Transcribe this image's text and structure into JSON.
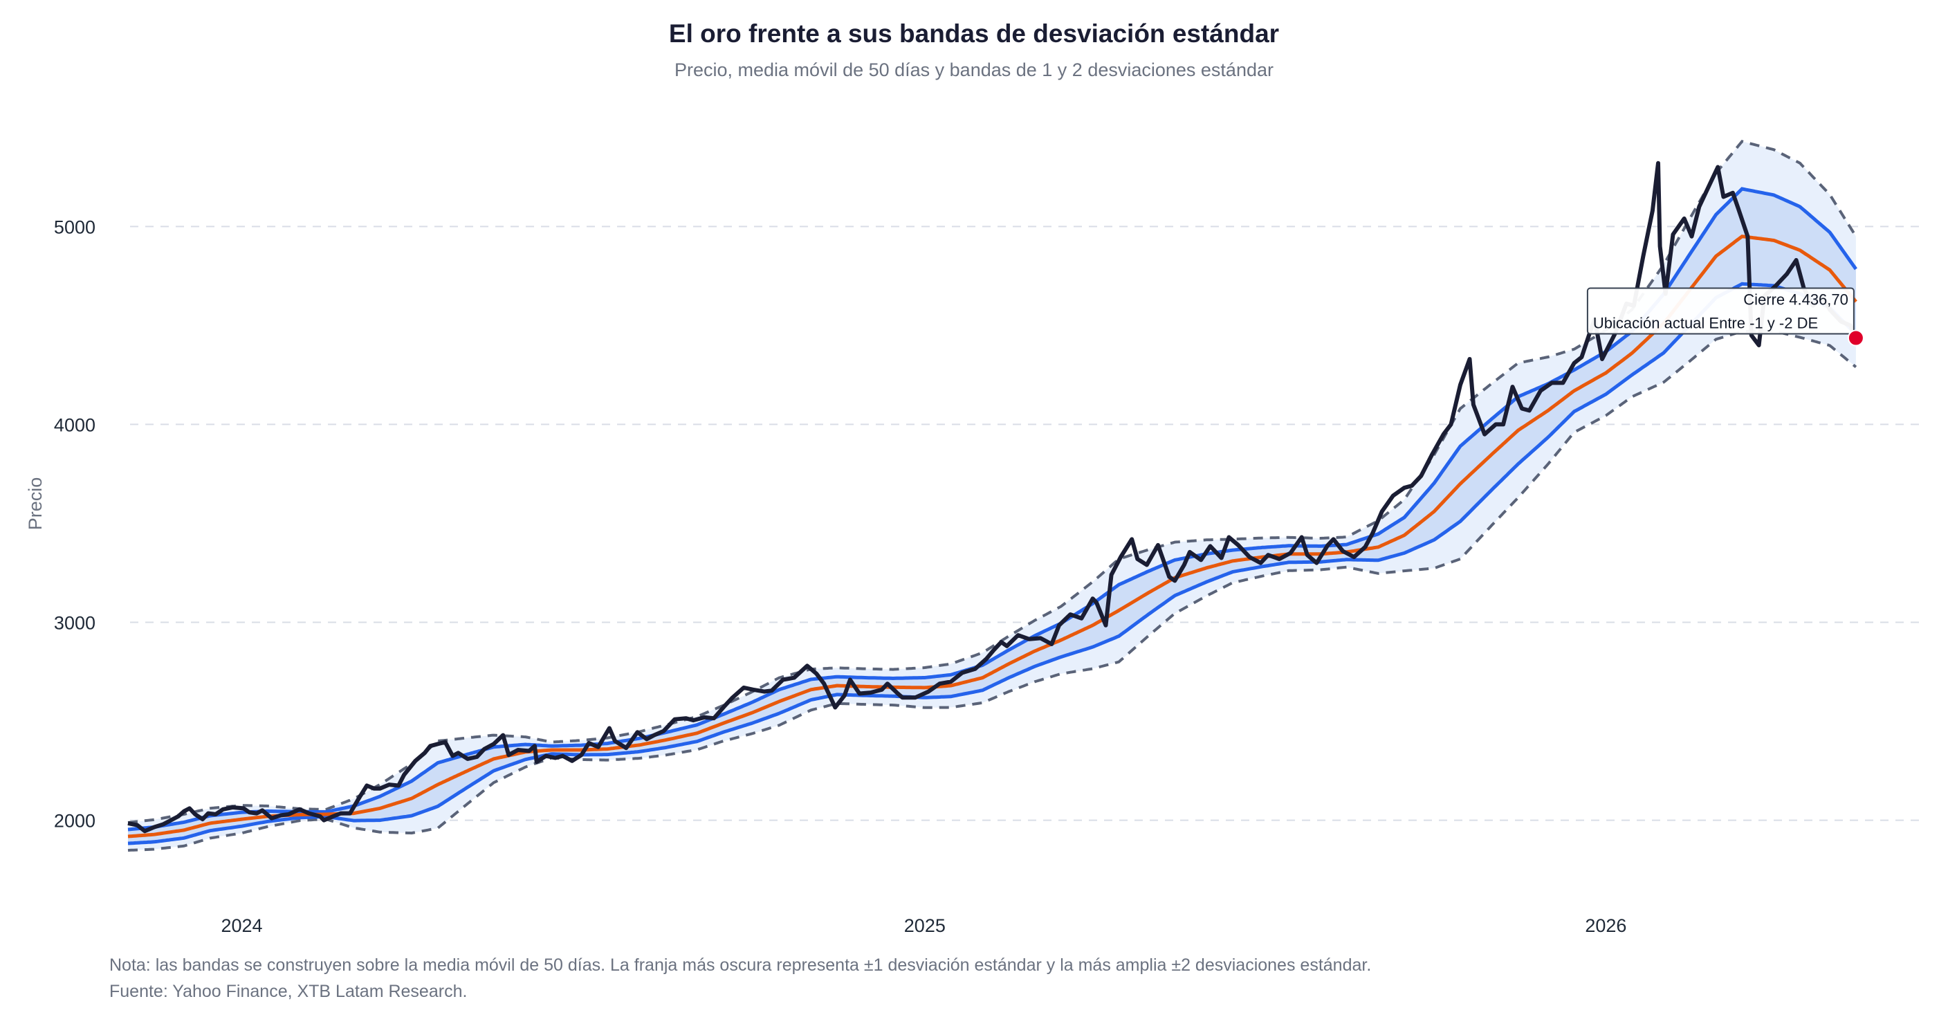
{
  "chart_data": {
    "type": "line",
    "title": "El oro frente a sus bandas de desviación estándar",
    "subtitle": "Precio, media móvil de 50 días y bandas de 1 y 2 desviaciones estándar",
    "ylabel": "Precio",
    "xlabel": "",
    "xlim": [
      "2023-10-22",
      "2026-06-20"
    ],
    "ylim": [
      1600,
      5620
    ],
    "x_ticks": [
      {
        "date": "2024-01-01",
        "label": "2024"
      },
      {
        "date": "2025-01-01",
        "label": "2025"
      },
      {
        "date": "2026-01-01",
        "label": "2026"
      }
    ],
    "y_ticks": [
      2000,
      3000,
      4000,
      5000
    ],
    "grid": "horizontal-dashed",
    "colors": {
      "price": "#1a1d33",
      "sma": "#e8590c",
      "band1": "#2563eb",
      "band2": "#5a6378",
      "fill1": "#cdddf7",
      "fill2": "#e8f0fc",
      "marker": "#e0002a"
    },
    "series": {
      "price": [
        [
          "2023-11-01",
          1985
        ],
        [
          "2023-11-06",
          1975
        ],
        [
          "2023-11-10",
          1945
        ],
        [
          "2023-11-15",
          1965
        ],
        [
          "2023-11-20",
          1980
        ],
        [
          "2023-11-24",
          2000
        ],
        [
          "2023-11-28",
          2020
        ],
        [
          "2023-12-01",
          2045
        ],
        [
          "2023-12-04",
          2060
        ],
        [
          "2023-12-07",
          2030
        ],
        [
          "2023-12-11",
          2005
        ],
        [
          "2023-12-14",
          2035
        ],
        [
          "2023-12-18",
          2030
        ],
        [
          "2023-12-22",
          2055
        ],
        [
          "2023-12-27",
          2065
        ],
        [
          "2024-01-02",
          2060
        ],
        [
          "2024-01-05",
          2040
        ],
        [
          "2024-01-09",
          2035
        ],
        [
          "2024-01-12",
          2050
        ],
        [
          "2024-01-17",
          2010
        ],
        [
          "2024-01-22",
          2025
        ],
        [
          "2024-01-26",
          2030
        ],
        [
          "2024-02-01",
          2055
        ],
        [
          "2024-02-06",
          2035
        ],
        [
          "2024-02-12",
          2020
        ],
        [
          "2024-02-14",
          2000
        ],
        [
          "2024-02-19",
          2020
        ],
        [
          "2024-02-23",
          2035
        ],
        [
          "2024-02-28",
          2035
        ],
        [
          "2024-03-04",
          2115
        ],
        [
          "2024-03-08",
          2175
        ],
        [
          "2024-03-12",
          2160
        ],
        [
          "2024-03-15",
          2160
        ],
        [
          "2024-03-20",
          2180
        ],
        [
          "2024-03-25",
          2175
        ],
        [
          "2024-03-28",
          2230
        ],
        [
          "2024-04-03",
          2300
        ],
        [
          "2024-04-08",
          2340
        ],
        [
          "2024-04-11",
          2375
        ],
        [
          "2024-04-15",
          2385
        ],
        [
          "2024-04-19",
          2395
        ],
        [
          "2024-04-23",
          2325
        ],
        [
          "2024-04-26",
          2340
        ],
        [
          "2024-05-01",
          2310
        ],
        [
          "2024-05-06",
          2320
        ],
        [
          "2024-05-10",
          2360
        ],
        [
          "2024-05-15",
          2385
        ],
        [
          "2024-05-20",
          2430
        ],
        [
          "2024-05-23",
          2330
        ],
        [
          "2024-05-28",
          2355
        ],
        [
          "2024-06-03",
          2350
        ],
        [
          "2024-06-06",
          2375
        ],
        [
          "2024-06-07",
          2295
        ],
        [
          "2024-06-12",
          2325
        ],
        [
          "2024-06-17",
          2315
        ],
        [
          "2024-06-21",
          2325
        ],
        [
          "2024-06-26",
          2300
        ],
        [
          "2024-07-01",
          2330
        ],
        [
          "2024-07-05",
          2390
        ],
        [
          "2024-07-10",
          2370
        ],
        [
          "2024-07-16",
          2465
        ],
        [
          "2024-07-19",
          2400
        ],
        [
          "2024-07-25",
          2365
        ],
        [
          "2024-07-31",
          2445
        ],
        [
          "2024-08-05",
          2410
        ],
        [
          "2024-08-09",
          2430
        ],
        [
          "2024-08-14",
          2450
        ],
        [
          "2024-08-20",
          2510
        ],
        [
          "2024-08-26",
          2515
        ],
        [
          "2024-08-30",
          2505
        ],
        [
          "2024-09-05",
          2520
        ],
        [
          "2024-09-10",
          2515
        ],
        [
          "2024-09-16",
          2580
        ],
        [
          "2024-09-20",
          2620
        ],
        [
          "2024-09-26",
          2670
        ],
        [
          "2024-10-01",
          2660
        ],
        [
          "2024-10-07",
          2650
        ],
        [
          "2024-10-11",
          2655
        ],
        [
          "2024-10-17",
          2710
        ],
        [
          "2024-10-23",
          2720
        ],
        [
          "2024-10-30",
          2780
        ],
        [
          "2024-11-04",
          2740
        ],
        [
          "2024-11-08",
          2690
        ],
        [
          "2024-11-14",
          2570
        ],
        [
          "2024-11-19",
          2630
        ],
        [
          "2024-11-22",
          2710
        ],
        [
          "2024-11-27",
          2640
        ],
        [
          "2024-12-03",
          2645
        ],
        [
          "2024-12-09",
          2660
        ],
        [
          "2024-12-12",
          2690
        ],
        [
          "2024-12-17",
          2645
        ],
        [
          "2024-12-20",
          2620
        ],
        [
          "2024-12-27",
          2620
        ],
        [
          "2025-01-03",
          2650
        ],
        [
          "2025-01-09",
          2690
        ],
        [
          "2025-01-15",
          2700
        ],
        [
          "2025-01-21",
          2745
        ],
        [
          "2025-01-28",
          2765
        ],
        [
          "2025-02-03",
          2815
        ],
        [
          "2025-02-07",
          2860
        ],
        [
          "2025-02-11",
          2900
        ],
        [
          "2025-02-14",
          2880
        ],
        [
          "2025-02-20",
          2935
        ],
        [
          "2025-02-26",
          2915
        ],
        [
          "2025-03-04",
          2920
        ],
        [
          "2025-03-10",
          2890
        ],
        [
          "2025-03-14",
          2985
        ],
        [
          "2025-03-20",
          3040
        ],
        [
          "2025-03-26",
          3020
        ],
        [
          "2025-04-01",
          3120
        ],
        [
          "2025-04-03",
          3100
        ],
        [
          "2025-04-08",
          2985
        ],
        [
          "2025-04-11",
          3240
        ],
        [
          "2025-04-16",
          3330
        ],
        [
          "2025-04-22",
          3420
        ],
        [
          "2025-04-25",
          3320
        ],
        [
          "2025-04-30",
          3290
        ],
        [
          "2025-05-06",
          3390
        ],
        [
          "2025-05-12",
          3230
        ],
        [
          "2025-05-15",
          3210
        ],
        [
          "2025-05-20",
          3290
        ],
        [
          "2025-05-23",
          3355
        ],
        [
          "2025-05-29",
          3315
        ],
        [
          "2025-06-03",
          3385
        ],
        [
          "2025-06-09",
          3325
        ],
        [
          "2025-06-13",
          3430
        ],
        [
          "2025-06-18",
          3390
        ],
        [
          "2025-06-24",
          3330
        ],
        [
          "2025-06-30",
          3300
        ],
        [
          "2025-07-04",
          3340
        ],
        [
          "2025-07-10",
          3320
        ],
        [
          "2025-07-16",
          3350
        ],
        [
          "2025-07-22",
          3430
        ],
        [
          "2025-07-25",
          3340
        ],
        [
          "2025-07-30",
          3300
        ],
        [
          "2025-08-05",
          3390
        ],
        [
          "2025-08-08",
          3420
        ],
        [
          "2025-08-13",
          3360
        ],
        [
          "2025-08-19",
          3330
        ],
        [
          "2025-08-25",
          3380
        ],
        [
          "2025-08-29",
          3450
        ],
        [
          "2025-09-03",
          3560
        ],
        [
          "2025-09-09",
          3640
        ],
        [
          "2025-09-15",
          3680
        ],
        [
          "2025-09-19",
          3690
        ],
        [
          "2025-09-24",
          3740
        ],
        [
          "2025-09-30",
          3850
        ],
        [
          "2025-10-06",
          3950
        ],
        [
          "2025-10-10",
          4000
        ],
        [
          "2025-10-15",
          4200
        ],
        [
          "2025-10-20",
          4330
        ],
        [
          "2025-10-22",
          4100
        ],
        [
          "2025-10-28",
          3950
        ],
        [
          "2025-11-03",
          4000
        ],
        [
          "2025-11-07",
          4000
        ],
        [
          "2025-11-12",
          4190
        ],
        [
          "2025-11-17",
          4080
        ],
        [
          "2025-11-21",
          4070
        ],
        [
          "2025-11-27",
          4170
        ],
        [
          "2025-12-03",
          4210
        ],
        [
          "2025-12-09",
          4210
        ],
        [
          "2025-12-15",
          4310
        ],
        [
          "2025-12-19",
          4340
        ],
        [
          "2025-12-24",
          4480
        ],
        [
          "2025-12-26",
          4530
        ],
        [
          "2025-12-30",
          4330
        ],
        [
          "2026-01-06",
          4460
        ],
        [
          "2026-01-12",
          4610
        ],
        [
          "2026-01-16",
          4600
        ],
        [
          "2026-01-21",
          4850
        ],
        [
          "2026-01-26",
          5080
        ],
        [
          "2026-01-29",
          5320
        ],
        [
          "2026-01-30",
          4900
        ],
        [
          "2026-02-02",
          4660
        ],
        [
          "2026-02-06",
          4960
        ],
        [
          "2026-02-12",
          5040
        ],
        [
          "2026-02-16",
          4950
        ],
        [
          "2026-02-20",
          5100
        ],
        [
          "2026-02-25",
          5200
        ],
        [
          "2026-03-02",
          5300
        ],
        [
          "2026-03-05",
          5150
        ],
        [
          "2026-03-10",
          5170
        ],
        [
          "2026-03-13",
          5090
        ],
        [
          "2026-03-18",
          4950
        ],
        [
          "2026-03-20",
          4450
        ],
        [
          "2026-03-24",
          4400
        ],
        [
          "2026-03-27",
          4650
        ],
        [
          "2026-04-02",
          4700
        ],
        [
          "2026-04-08",
          4760
        ],
        [
          "2026-04-13",
          4830
        ],
        [
          "2026-04-17",
          4690
        ],
        [
          "2026-04-22",
          4600
        ],
        [
          "2026-04-27",
          4650
        ],
        [
          "2026-05-01",
          4580
        ],
        [
          "2026-05-07",
          4520
        ],
        [
          "2026-05-12",
          4500
        ],
        [
          "2026-05-15",
          4436.7
        ]
      ],
      "sma": [
        [
          "2023-11-01",
          1918
        ],
        [
          "2023-11-15",
          1928
        ],
        [
          "2023-12-01",
          1950
        ],
        [
          "2023-12-15",
          1985
        ],
        [
          "2024-01-01",
          2005
        ],
        [
          "2024-01-15",
          2020
        ],
        [
          "2024-02-01",
          2028
        ],
        [
          "2024-02-15",
          2030
        ],
        [
          "2024-03-01",
          2035
        ],
        [
          "2024-03-15",
          2060
        ],
        [
          "2024-04-01",
          2110
        ],
        [
          "2024-04-15",
          2180
        ],
        [
          "2024-05-01",
          2250
        ],
        [
          "2024-05-15",
          2310
        ],
        [
          "2024-06-01",
          2345
        ],
        [
          "2024-06-15",
          2355
        ],
        [
          "2024-07-01",
          2355
        ],
        [
          "2024-07-15",
          2360
        ],
        [
          "2024-08-01",
          2380
        ],
        [
          "2024-08-15",
          2405
        ],
        [
          "2024-09-01",
          2440
        ],
        [
          "2024-09-15",
          2490
        ],
        [
          "2024-10-01",
          2545
        ],
        [
          "2024-10-15",
          2600
        ],
        [
          "2024-11-01",
          2660
        ],
        [
          "2024-11-15",
          2680
        ],
        [
          "2024-12-01",
          2675
        ],
        [
          "2024-12-15",
          2672
        ],
        [
          "2025-01-01",
          2670
        ],
        [
          "2025-01-15",
          2680
        ],
        [
          "2025-02-01",
          2720
        ],
        [
          "2025-02-15",
          2790
        ],
        [
          "2025-03-01",
          2855
        ],
        [
          "2025-03-15",
          2910
        ],
        [
          "2025-04-01",
          2985
        ],
        [
          "2025-04-15",
          3060
        ],
        [
          "2025-05-01",
          3150
        ],
        [
          "2025-05-15",
          3225
        ],
        [
          "2025-06-01",
          3275
        ],
        [
          "2025-06-15",
          3310
        ],
        [
          "2025-07-01",
          3330
        ],
        [
          "2025-07-15",
          3345
        ],
        [
          "2025-08-01",
          3345
        ],
        [
          "2025-08-15",
          3355
        ],
        [
          "2025-09-01",
          3380
        ],
        [
          "2025-09-15",
          3440
        ],
        [
          "2025-10-01",
          3560
        ],
        [
          "2025-10-15",
          3700
        ],
        [
          "2025-11-01",
          3850
        ],
        [
          "2025-11-15",
          3970
        ],
        [
          "2025-12-01",
          4070
        ],
        [
          "2025-12-15",
          4170
        ],
        [
          "2026-01-01",
          4260
        ],
        [
          "2026-01-15",
          4360
        ],
        [
          "2026-02-01",
          4510
        ],
        [
          "2026-02-15",
          4680
        ],
        [
          "2026-03-01",
          4850
        ],
        [
          "2026-03-15",
          4950
        ],
        [
          "2026-04-01",
          4930
        ],
        [
          "2026-04-15",
          4880
        ],
        [
          "2026-05-01",
          4780
        ],
        [
          "2026-05-15",
          4620
        ]
      ],
      "sd": [
        [
          "2023-11-01",
          35
        ],
        [
          "2023-12-01",
          40
        ],
        [
          "2024-01-01",
          35
        ],
        [
          "2024-02-01",
          15
        ],
        [
          "2024-02-15",
          12
        ],
        [
          "2024-03-15",
          60
        ],
        [
          "2024-04-15",
          110
        ],
        [
          "2024-05-15",
          60
        ],
        [
          "2024-06-15",
          20
        ],
        [
          "2024-07-15",
          28
        ],
        [
          "2024-08-15",
          38
        ],
        [
          "2024-09-15",
          45
        ],
        [
          "2024-10-15",
          60
        ],
        [
          "2024-11-15",
          45
        ],
        [
          "2024-12-15",
          45
        ],
        [
          "2025-01-15",
          55
        ],
        [
          "2025-02-15",
          70
        ],
        [
          "2025-03-15",
          85
        ],
        [
          "2025-04-15",
          130
        ],
        [
          "2025-05-15",
          90
        ],
        [
          "2025-06-15",
          55
        ],
        [
          "2025-07-15",
          42
        ],
        [
          "2025-08-15",
          38
        ],
        [
          "2025-09-15",
          90
        ],
        [
          "2025-10-15",
          190
        ],
        [
          "2025-11-15",
          170
        ],
        [
          "2025-12-15",
          105
        ],
        [
          "2026-01-15",
          110
        ],
        [
          "2026-02-15",
          180
        ],
        [
          "2026-03-15",
          240
        ],
        [
          "2026-04-15",
          220
        ],
        [
          "2026-05-15",
          165
        ]
      ]
    },
    "annotation": {
      "date": "2026-05-15",
      "value": 4436.7,
      "line1": "Cierre 4.436,70",
      "line2": "Ubicación actual Entre -1 y -2 DE"
    }
  },
  "footer": {
    "note": "Nota: las bandas se construyen sobre la media móvil de 50 días. La franja más oscura representa ±1 desviación estándar y la más amplia ±2 desviaciones estándar.",
    "source": "Fuente: Yahoo Finance, XTB Latam Research."
  }
}
